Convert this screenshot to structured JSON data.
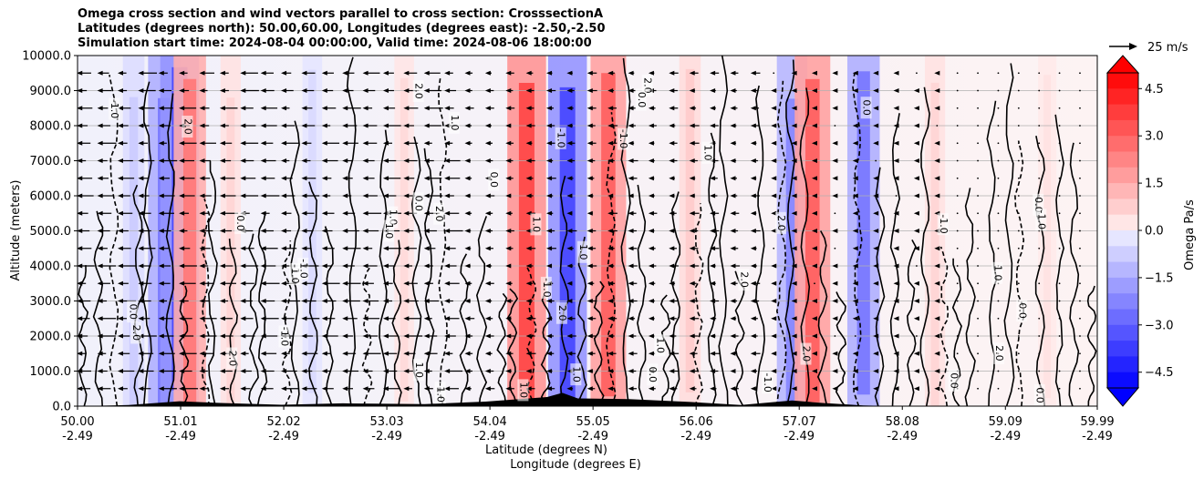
{
  "chart_data": {
    "type": "heatmap",
    "title": [
      "Omega cross section and wind vectors parallel to cross section: CrosssectionA",
      "Latitudes (degrees north): 50.00,60.00, Longitudes (degrees east): -2.50,-2.50",
      "Simulation start time: 2024-08-04 00:00:00, Valid time: 2024-08-06 18:00:00"
    ],
    "xlabel": "Latitude (degrees N)",
    "xlabel2": "Longitude (degrees E)",
    "ylabel": "Altitude (meters)",
    "ylim": [
      0,
      10000
    ],
    "yticks": [
      "0.0",
      "1000.0",
      "2000.0",
      "3000.0",
      "4000.0",
      "5000.0",
      "6000.0",
      "7000.0",
      "8000.0",
      "9000.0",
      "10000.0"
    ],
    "xticks_lat": [
      "50.00",
      "51.01",
      "52.02",
      "53.03",
      "54.04",
      "55.05",
      "56.06",
      "57.07",
      "58.08",
      "59.09",
      "59.99"
    ],
    "xticks_lon": [
      "-2.49",
      "-2.49",
      "-2.49",
      "-2.49",
      "-2.49",
      "-2.49",
      "-2.49",
      "-2.49",
      "-2.49",
      "-2.49",
      "-2.49"
    ],
    "xlim": [
      50.0,
      59.99
    ],
    "colorbar": {
      "label": "Omega Pa/s",
      "range": [
        -5.0,
        5.0
      ],
      "ticks": [
        "4.5",
        "3.0",
        "1.5",
        "0.0",
        "−1.5",
        "−3.0",
        "−4.5"
      ],
      "neg_color": "#0000ff",
      "pos_color": "#ff0000"
    },
    "quiver_key": {
      "label": "25 m/s"
    },
    "contour_labels": [
      "0.0",
      "1.0",
      "-1.0",
      "2.0"
    ],
    "omega_columns": [
      {
        "lat": 50.55,
        "omega": -0.8
      },
      {
        "lat": 50.85,
        "omega": -2.5
      },
      {
        "lat": 51.0,
        "omega": -3.5
      },
      {
        "lat": 51.1,
        "omega": 2.5
      },
      {
        "lat": 51.5,
        "omega": 0.6
      },
      {
        "lat": 52.3,
        "omega": -0.5
      },
      {
        "lat": 53.2,
        "omega": 0.5
      },
      {
        "lat": 54.4,
        "omega": 3.5
      },
      {
        "lat": 54.8,
        "omega": -3.5
      },
      {
        "lat": 55.2,
        "omega": 3.0
      },
      {
        "lat": 56.0,
        "omega": 0.8
      },
      {
        "lat": 57.0,
        "omega": -2.2
      },
      {
        "lat": 57.2,
        "omega": 3.0
      },
      {
        "lat": 57.7,
        "omega": -2.5
      },
      {
        "lat": 58.4,
        "omega": 0.6
      },
      {
        "lat": 59.5,
        "omega": 0.3
      }
    ],
    "terrain": [
      {
        "lat": 50.0,
        "height": 0
      },
      {
        "lat": 50.5,
        "height": 30
      },
      {
        "lat": 51.0,
        "height": 140
      },
      {
        "lat": 51.4,
        "height": 90
      },
      {
        "lat": 52.0,
        "height": 40
      },
      {
        "lat": 52.6,
        "height": 80
      },
      {
        "lat": 53.4,
        "height": 60
      },
      {
        "lat": 54.0,
        "height": 130
      },
      {
        "lat": 54.6,
        "height": 260
      },
      {
        "lat": 54.75,
        "height": 380
      },
      {
        "lat": 54.9,
        "height": 220
      },
      {
        "lat": 55.4,
        "height": 200
      },
      {
        "lat": 56.0,
        "height": 120
      },
      {
        "lat": 56.5,
        "height": 30
      },
      {
        "lat": 57.0,
        "height": 160
      },
      {
        "lat": 57.3,
        "height": 90
      },
      {
        "lat": 57.7,
        "height": 20
      },
      {
        "lat": 58.0,
        "height": 0
      },
      {
        "lat": 59.99,
        "height": 0
      }
    ]
  }
}
